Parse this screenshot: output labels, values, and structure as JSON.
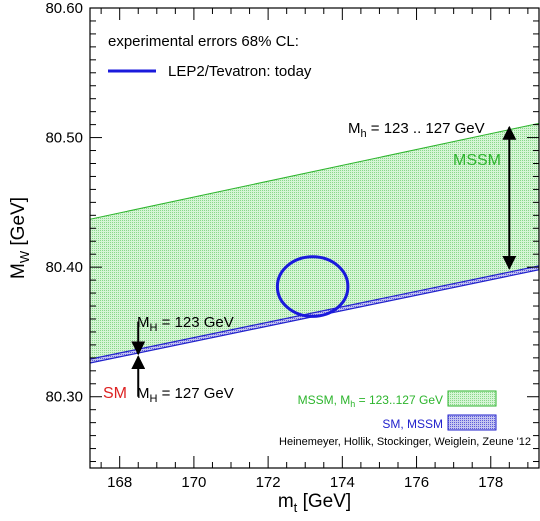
{
  "chart_data": {
    "type": "area",
    "xlabel": "m",
    "xlabel_sub": "t",
    "xlabel_unit": " [GeV]",
    "ylabel": "M",
    "ylabel_sub": "W",
    "ylabel_unit": " [GeV]",
    "xlim": [
      167.2,
      179.3
    ],
    "ylim": [
      80.245,
      80.6
    ],
    "x_ticks": [
      168,
      170,
      172,
      174,
      176,
      178
    ],
    "y_ticks": [
      80.3,
      80.4,
      80.5,
      80.6
    ],
    "y_tick_labels": [
      "80.30",
      "80.40",
      "80.50",
      "80.60"
    ],
    "series": [
      {
        "name": "MSSM, M",
        "name_sub": "h",
        "name_rest": " = 123..127 GeV",
        "color": "#2db52d",
        "fill": "#bfeebf",
        "upper": [
          [
            167.2,
            80.437
          ],
          [
            179.3,
            80.511
          ]
        ],
        "lower": [
          [
            167.2,
            80.329
          ],
          [
            179.3,
            80.401
          ]
        ]
      },
      {
        "name": "SM, MSSM",
        "color": "#2222cc",
        "fill": "#9a9ae8",
        "upper": [
          [
            167.2,
            80.329
          ],
          [
            179.3,
            80.401
          ]
        ],
        "lower": [
          [
            167.2,
            80.326
          ],
          [
            179.3,
            80.398
          ]
        ]
      }
    ],
    "measurement": {
      "legend_title": "experimental errors 68% CL:",
      "name": "LEP2/Tevatron: today",
      "color": "#1a1adc",
      "center": [
        173.2,
        80.385
      ],
      "half_width": [
        0.95,
        0.023
      ]
    },
    "annotations": {
      "mh_range": {
        "pre": "M",
        "sub": "h",
        "post": " = 123 .. 127 GeV",
        "x": 178.5,
        "y_from": 80.508,
        "y_to": 80.399
      },
      "mssm_label": {
        "text": "MSSM",
        "color": "#2db52d"
      },
      "mH123": {
        "pre": "M",
        "sub": "H",
        "post": " = 123 GeV",
        "x": 168.5,
        "y_from": 80.358,
        "y_to": 80.333
      },
      "mH127": {
        "pre": "M",
        "sub": "H",
        "post": " = 127 GeV",
        "x": 168.5,
        "y_from": 80.3,
        "y_to": 80.331
      },
      "sm_label": {
        "text": "SM",
        "color": "#dd2222"
      }
    },
    "credit": "Heinemeyer, Hollik, Stockinger, Weiglein, Zeune '12"
  }
}
